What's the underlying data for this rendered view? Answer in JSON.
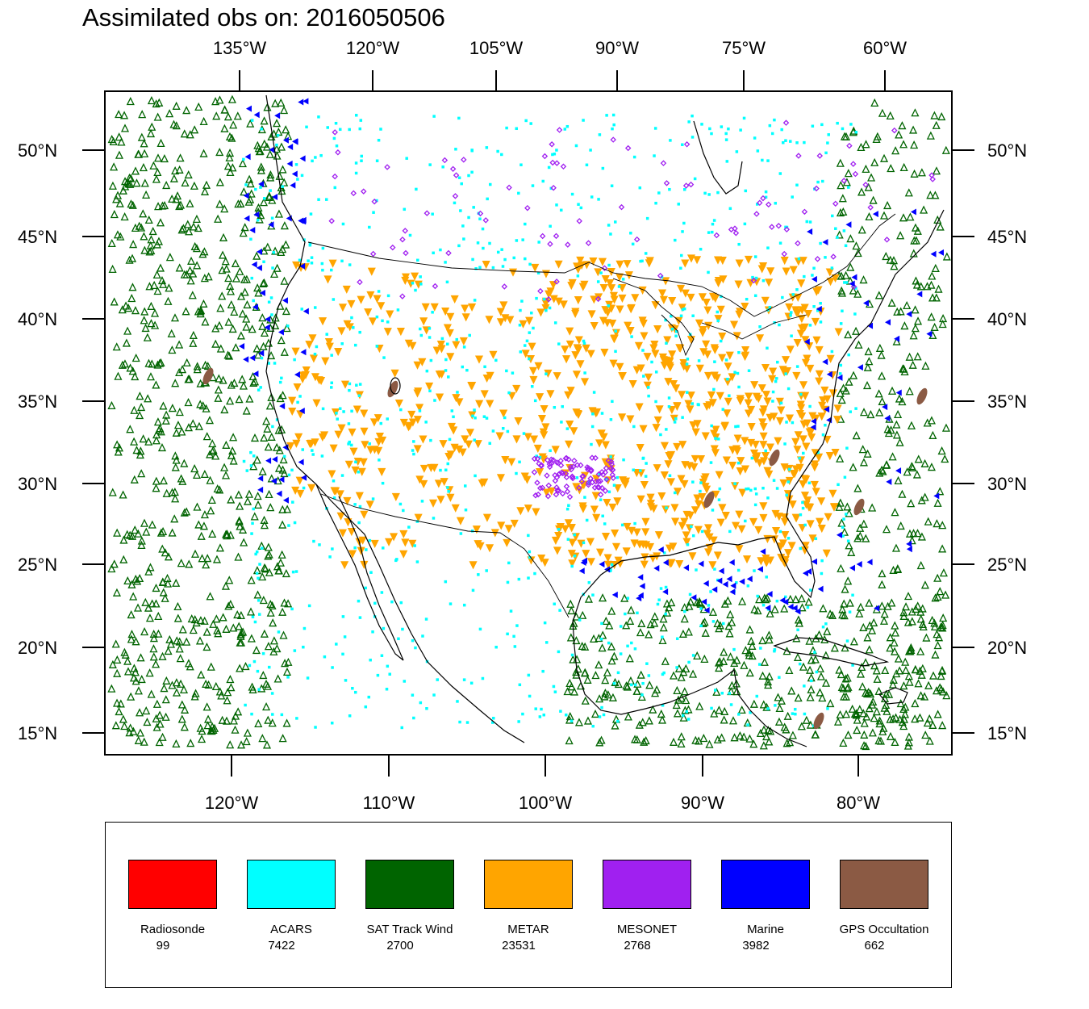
{
  "title": "Assimilated obs on: 2016050506",
  "map": {
    "top_axis": {
      "ticks": [
        "135°W",
        "120°W",
        "105°W",
        "90°W",
        "75°W",
        "60°W"
      ]
    },
    "bottom_axis": {
      "ticks": [
        "120°W",
        "110°W",
        "100°W",
        "90°W",
        "80°W"
      ]
    },
    "lat_axis": {
      "ticks": [
        "50°N",
        "45°N",
        "40°N",
        "35°N",
        "30°N",
        "25°N",
        "20°N",
        "15°N"
      ]
    },
    "lon_range": [
      -128,
      -74
    ],
    "lat_range": [
      13.5,
      53.5
    ]
  },
  "legend": {
    "items": [
      {
        "name": "Radiosonde",
        "count": "99",
        "color": "#ff0000"
      },
      {
        "name": "ACARS",
        "count": "7422",
        "color": "#00ffff"
      },
      {
        "name": "SAT Track Wind",
        "count": "2700",
        "color": "#006400"
      },
      {
        "name": "METAR",
        "count": "23531",
        "color": "#ffa500"
      },
      {
        "name": "MESONET",
        "count": "2768",
        "color": "#a020f0"
      },
      {
        "name": "Marine",
        "count": "3982",
        "color": "#0000ff"
      },
      {
        "name": "GPS Occultation",
        "count": "662",
        "color": "#8b5a44"
      }
    ]
  }
}
